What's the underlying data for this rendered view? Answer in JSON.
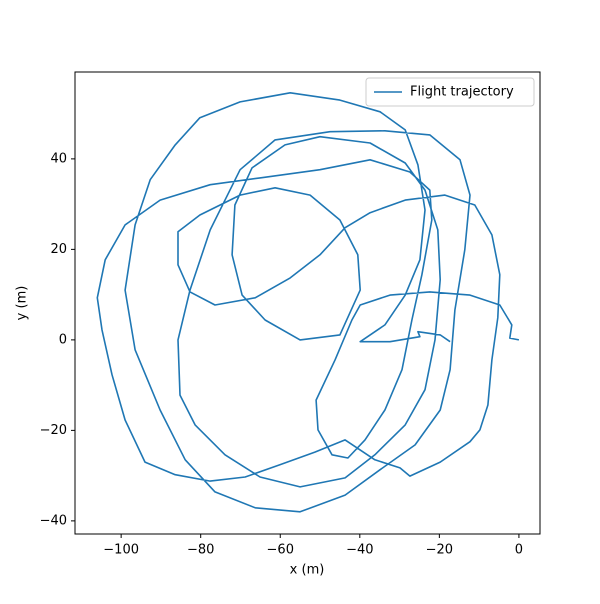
{
  "chart_data": {
    "type": "line",
    "xlabel": "x (m)",
    "ylabel": "y (m)",
    "xlim": [
      -111.6,
      5.3
    ],
    "ylim": [
      -42.9,
      59.2
    ],
    "xticks": [
      {
        "value": -100,
        "label": "−100"
      },
      {
        "value": -80,
        "label": "−80"
      },
      {
        "value": -60,
        "label": "−60"
      },
      {
        "value": -40,
        "label": "−40"
      },
      {
        "value": -20,
        "label": "−20"
      },
      0
    ],
    "yticks": [
      {
        "value": -40,
        "label": "−40"
      },
      {
        "value": -20,
        "label": "−20"
      },
      0,
      20,
      40
    ],
    "legend": "upper right",
    "series": [
      {
        "name": "Flight trajectory",
        "color": "#1f77b4",
        "x": [
          0,
          -2.3,
          -1.8,
          -4.8,
          -12.3,
          -22.4,
          -32.4,
          -39.9,
          -42.0,
          -46.2,
          -51.0,
          -50.5,
          -47.0,
          -43.0,
          -38.7,
          -33.7,
          -29.4,
          -26.9,
          -24.4,
          -21.9,
          -22.4,
          -27.4,
          -37.4,
          -50.0,
          -65.1,
          -77.6,
          -90.2,
          -99.0,
          -104.0,
          -106.0,
          -104.8,
          -102.3,
          -99.0,
          -94.0,
          -86.4,
          -77.6,
          -68.8,
          -60.1,
          -51.3,
          -43.7,
          -36.2,
          -29.9,
          -27.4,
          -19.8,
          -12.3,
          -9.8,
          -7.8,
          -6.8,
          -5.3,
          -4.8,
          -6.8,
          -11.1,
          -18.6,
          -28.6,
          -37.4,
          -43.7,
          -50.0,
          -57.5,
          -66.3,
          -76.4,
          -82.7,
          -85.7,
          -85.7,
          -80.2,
          -70.1,
          -61.3,
          -52.5,
          -45.0,
          -40.5,
          -39.9,
          -45.0,
          -55.0,
          -63.8,
          -69.6,
          -72.1,
          -71.4,
          -67.1,
          -58.8,
          -50.0,
          -37.4,
          -28.6,
          -23.6,
          -20.4,
          -19.8,
          -21.1,
          -23.6,
          -28.6,
          -36.2,
          -43.7,
          -55.0,
          -65.1,
          -73.9,
          -81.4,
          -85.2,
          -85.7,
          -82.7,
          -77.6,
          -70.1,
          -61.3,
          -47.5,
          -33.7,
          -22.4,
          -14.8,
          -12.3,
          -13.6,
          -16.1,
          -17.3,
          -19.8,
          -26.1,
          -34.9,
          -43.7,
          -55.0,
          -66.3,
          -76.4,
          -83.9,
          -90.2,
          -96.5,
          -99.0,
          -96.5,
          -92.7,
          -86.4,
          -80.2,
          -70.1,
          -57.5,
          -45.0,
          -34.9,
          -28.6,
          -25.4,
          -23.6,
          -24.9,
          -28.6,
          -33.7,
          -39.9,
          -32.4,
          -24.9,
          -25.4,
          -19.8,
          -17.3
        ],
        "values": [
          0,
          0.4,
          3.3,
          7.7,
          9.9,
          10.6,
          9.9,
          7.7,
          4.4,
          -4.4,
          -13.3,
          -19.9,
          -25.4,
          -26.1,
          -22.1,
          -15.5,
          -6.6,
          4.4,
          14.4,
          26.5,
          33.1,
          37.1,
          39.8,
          37.6,
          35.8,
          34.3,
          30.9,
          25.4,
          17.7,
          9.3,
          2.2,
          -7.7,
          -17.7,
          -27.0,
          -29.8,
          -31.2,
          -30.3,
          -27.6,
          -24.8,
          -22.1,
          -26.5,
          -28.3,
          -30.1,
          -27.0,
          -22.5,
          -19.9,
          -14.4,
          -4.4,
          4.9,
          14.4,
          23.2,
          29.8,
          32.0,
          30.9,
          28.1,
          24.8,
          18.8,
          13.7,
          9.3,
          7.7,
          10.6,
          16.6,
          23.9,
          27.6,
          32.0,
          33.6,
          32.0,
          26.5,
          18.8,
          11.0,
          1.1,
          0,
          4.4,
          9.9,
          18.8,
          29.8,
          38.0,
          43.1,
          44.9,
          43.5,
          39.1,
          33.1,
          24.3,
          13.3,
          0,
          -11.0,
          -18.8,
          -25.4,
          -30.5,
          -32.5,
          -30.3,
          -25.4,
          -18.8,
          -12.2,
          0,
          11.0,
          24.3,
          37.6,
          44.2,
          46.0,
          46.2,
          45.3,
          39.8,
          32.0,
          19.9,
          6.6,
          -6.6,
          -15.5,
          -23.2,
          -28.7,
          -34.3,
          -38.0,
          -37.1,
          -33.6,
          -26.5,
          -15.5,
          -2.2,
          11.0,
          25.4,
          35.4,
          43.1,
          49.1,
          52.6,
          54.6,
          53.0,
          50.4,
          46.4,
          38.7,
          28.7,
          17.7,
          9.9,
          3.3,
          -0.4,
          -0.4,
          0.7,
          1.8,
          1.1,
          -0.4
        ]
      }
    ]
  }
}
